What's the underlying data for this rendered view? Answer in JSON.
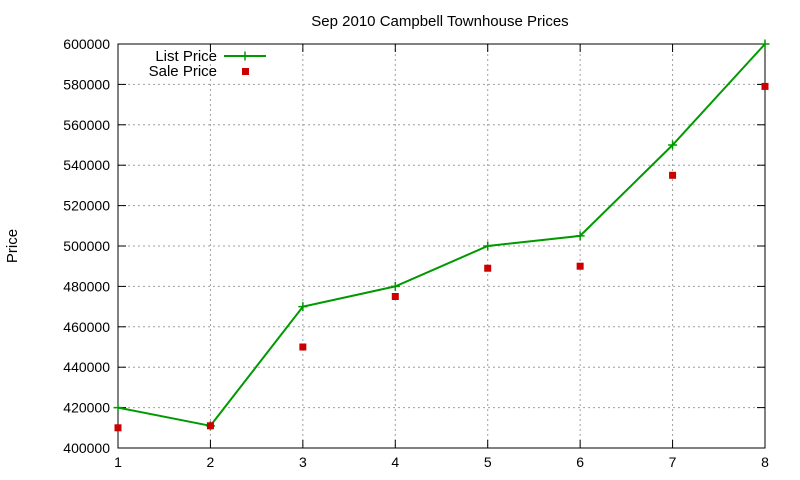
{
  "chart_data": {
    "type": "line",
    "title": "Sep 2010 Campbell Townhouse Prices",
    "xlabel": "",
    "ylabel": "Price",
    "x": [
      1,
      2,
      3,
      4,
      5,
      6,
      7,
      8
    ],
    "xlim": [
      1,
      8
    ],
    "ylim": [
      400000,
      600000
    ],
    "xticks": [
      1,
      2,
      3,
      4,
      5,
      6,
      7,
      8
    ],
    "yticks": [
      400000,
      420000,
      440000,
      460000,
      480000,
      500000,
      520000,
      540000,
      560000,
      580000,
      600000
    ],
    "grid": true,
    "legend_position": "top-left",
    "series": [
      {
        "name": "List Price",
        "style": "line+cross",
        "color": "#009900",
        "values": [
          420000,
          411000,
          470000,
          480000,
          500000,
          505000,
          550000,
          600000
        ]
      },
      {
        "name": "Sale Price",
        "style": "square",
        "color": "#cc0000",
        "values": [
          410000,
          411000,
          450000,
          475000,
          489000,
          490000,
          535000,
          579000
        ]
      }
    ]
  }
}
